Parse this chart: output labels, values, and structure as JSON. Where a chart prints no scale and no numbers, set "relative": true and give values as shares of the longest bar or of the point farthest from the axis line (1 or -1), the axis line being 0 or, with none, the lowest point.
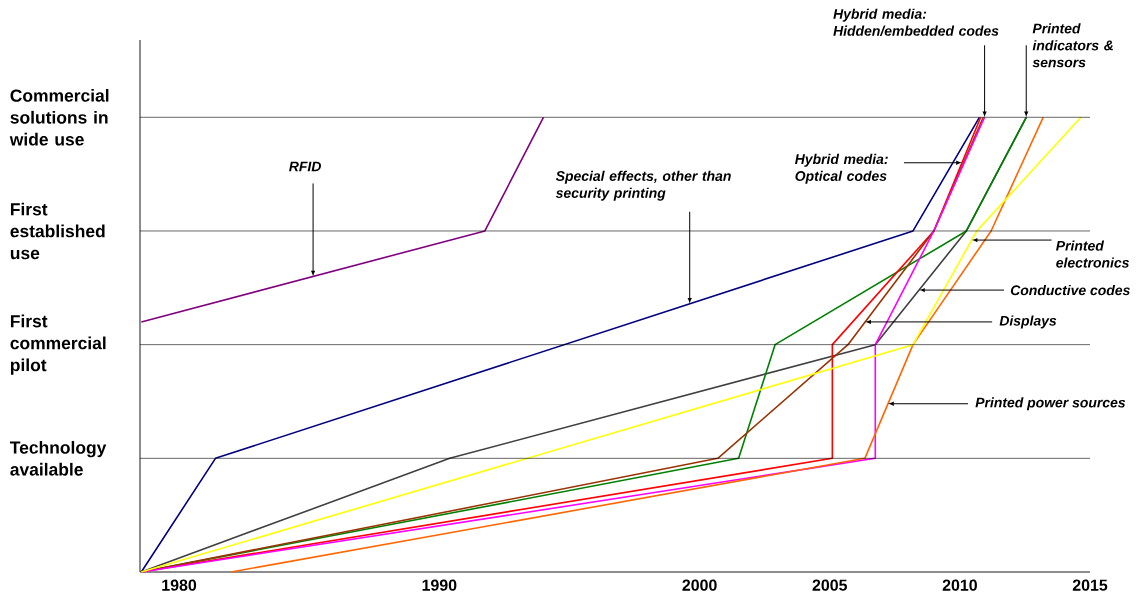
{
  "chart_data": {
    "type": "line",
    "relative": true,
    "xlim": [
      1978.5,
      2015
    ],
    "xticks": [
      1980,
      1990,
      2000,
      2005,
      2010,
      2015
    ],
    "ref_lines": [
      {
        "axis": "y",
        "value": 0.25,
        "label": "Technology available",
        "color": "#000000"
      },
      {
        "axis": "y",
        "value": 0.5,
        "label": "First commercial pilot",
        "color": "#000000"
      },
      {
        "axis": "y",
        "value": 0.75,
        "label": "First established use",
        "color": "#000000"
      },
      {
        "axis": "y",
        "value": 1,
        "label": "Commercial solutions in wide use",
        "color": "#000000"
      }
    ],
    "marker": "none",
    "line_style": "solid",
    "series": [
      {
        "color": "#800080",
        "x": [
          1978.55,
          1991.75,
          1994.0
        ],
        "values": [
          0.55,
          0.75,
          1
        ]
      },
      {
        "color": "#000080",
        "x": [
          1978.55,
          1981.4,
          2008.2,
          2010.75
        ],
        "values": [
          0,
          0.25,
          0.75,
          1
        ]
      },
      {
        "color": "#404040",
        "x": [
          1978.55,
          1990.4,
          2006.75,
          2010.25,
          2012.55
        ],
        "values": [
          0,
          0.25,
          0.5,
          0.75,
          1
        ]
      },
      {
        "color": "#008000",
        "x": [
          1978.55,
          2001.5,
          2002.9,
          2010.25,
          2012.55
        ],
        "values": [
          0,
          0.25,
          0.5,
          0.75,
          1
        ]
      },
      {
        "color": "#ff0000",
        "x": [
          1978.55,
          2005.1,
          2005.1,
          2009.0,
          2010.8
        ],
        "values": [
          0,
          0.25,
          0.5,
          0.75,
          1
        ]
      },
      {
        "color": "#993300",
        "x": [
          1978.55,
          2000.7,
          2005.7,
          2009.0,
          2010.9
        ],
        "values": [
          0,
          0.25,
          0.5,
          0.75,
          1
        ]
      },
      {
        "color": "#ff00ff",
        "x": [
          1978.55,
          2006.75,
          2006.75,
          2009.0,
          2010.95
        ],
        "values": [
          0,
          0.25,
          0.5,
          0.75,
          1
        ]
      },
      {
        "color": "#ff6600",
        "x": [
          1982.0,
          2006.35,
          2008.2,
          2011.2,
          2013.2
        ],
        "values": [
          0,
          0.25,
          0.5,
          0.75,
          1
        ]
      },
      {
        "color": "#ffff00",
        "x": [
          1978.55,
          2008.2,
          2010.65,
          2014.65
        ],
        "values": [
          0,
          0.5,
          0.75,
          1
        ]
      }
    ],
    "annotations": [
      {
        "text": "RFID",
        "x": 1985.15,
        "y": 0.65
      },
      {
        "text": "Special effects, other than security printing",
        "x": 1999.62,
        "y": 0.59
      },
      {
        "text": "Hybrid media: Optical codes",
        "x": 2010.08,
        "y": 0.9
      },
      {
        "text": "Hybrid media: Hidden/embedded codes",
        "x": 2010.95,
        "y": 1
      },
      {
        "text": "Printed indicators & sensors",
        "x": 2012.55,
        "y": 1
      },
      {
        "text": "Printed electronics",
        "x": 2010.45,
        "y": 0.73
      },
      {
        "text": "Conductive codes",
        "x": 2008.43,
        "y": 0.62
      },
      {
        "text": "Displays",
        "x": 2006.36,
        "y": 0.55
      },
      {
        "text": "Printed power sources",
        "x": 2007.24,
        "y": 0.37
      }
    ]
  }
}
